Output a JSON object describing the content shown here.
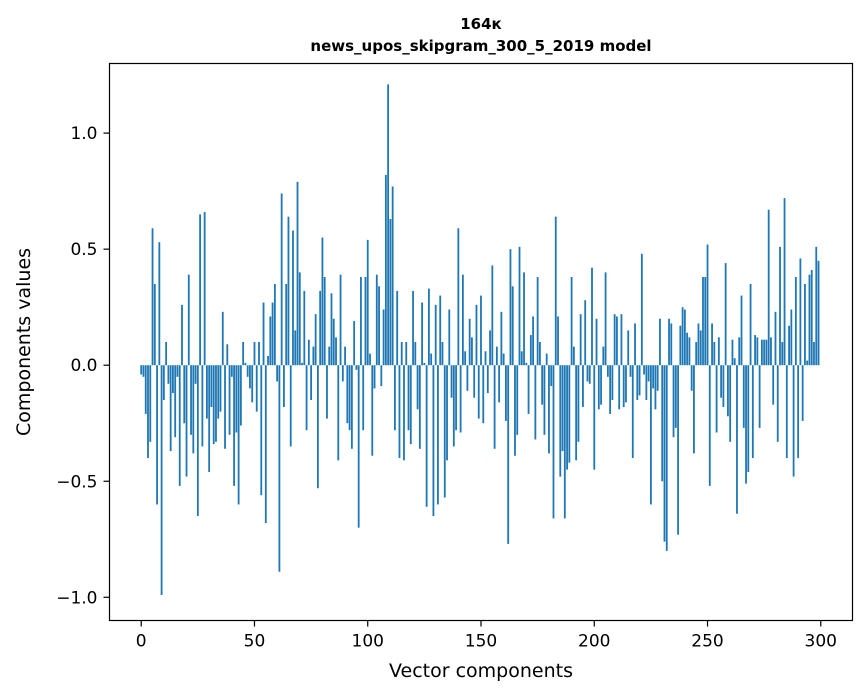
{
  "chart_data": {
    "type": "bar",
    "title": "164к",
    "subtitle": "news_upos_skipgram_300_5_2019 model",
    "xlabel": "Vector components",
    "ylabel": "Components values",
    "xlim": [
      -14,
      314
    ],
    "ylim": [
      -1.1,
      1.3
    ],
    "xticks": [
      0,
      50,
      100,
      150,
      200,
      250,
      300
    ],
    "yticks": [
      -1.0,
      -0.5,
      0.0,
      0.5,
      1.0
    ],
    "ytick_labels": [
      "−1.0",
      "−0.5",
      "0.0",
      "0.5",
      "1.0"
    ],
    "color": "#1f77b4",
    "values": [
      -0.04,
      -0.05,
      -0.21,
      -0.4,
      -0.33,
      0.59,
      0.35,
      -0.6,
      0.53,
      -0.99,
      -0.15,
      0.1,
      -0.08,
      -0.37,
      -0.12,
      -0.31,
      -0.05,
      -0.52,
      0.26,
      -0.25,
      -0.48,
      0.39,
      -0.3,
      -0.38,
      -0.08,
      -0.65,
      0.65,
      -0.35,
      0.66,
      -0.23,
      -0.46,
      -0.18,
      -0.34,
      -0.33,
      -0.23,
      -0.2,
      0.23,
      -0.36,
      0.09,
      -0.3,
      -0.05,
      -0.52,
      -0.29,
      -0.6,
      -0.26,
      0.1,
      0.01,
      -0.05,
      -0.1,
      -0.16,
      0.1,
      -0.2,
      0.1,
      -0.56,
      0.27,
      -0.68,
      0.04,
      0.21,
      0.27,
      0.35,
      -0.07,
      -0.89,
      0.74,
      -0.18,
      0.35,
      0.64,
      -0.35,
      0.58,
      0.15,
      0.79,
      0.4,
      0.01,
      0.32,
      -0.28,
      0.11,
      -0.15,
      0.08,
      0.22,
      -0.53,
      0.32,
      0.55,
      0.38,
      -0.23,
      0.08,
      0.31,
      0.2,
      0.12,
      -0.41,
      0.39,
      -0.07,
      0.08,
      -0.25,
      -0.28,
      -0.36,
      0.19,
      -0.02,
      -0.7,
      0.38,
      -0.28,
      0.38,
      0.54,
      0.05,
      -0.39,
      -0.1,
      0.39,
      0.34,
      -0.09,
      0.24,
      0.82,
      1.21,
      0.63,
      0.77,
      -0.28,
      0.32,
      -0.4,
      0.1,
      -0.41,
      0.1,
      -0.28,
      -0.34,
      0.32,
      0.1,
      -0.19,
      -0.36,
      0.27,
      0.01,
      -0.61,
      0.33,
      0.05,
      -0.65,
      0.26,
      -0.6,
      0.3,
      0.1,
      -0.57,
      -0.41,
      0.24,
      -0.14,
      -0.35,
      -0.28,
      0.59,
      -0.29,
      0.39,
      0.06,
      -0.11,
      0.2,
      0.12,
      -0.14,
      0.26,
      -0.23,
      0.3,
      -0.25,
      0.06,
      -0.12,
      0.15,
      0.43,
      -0.36,
      0.08,
      -0.16,
      0.23,
      0.05,
      -0.24,
      -0.77,
      0.5,
      0.34,
      -0.39,
      -0.3,
      0.51,
      0.06,
      0.4,
      0.01,
      -0.21,
      0.13,
      0.21,
      -0.32,
      0.38,
      0.1,
      -0.17,
      -0.3,
      0.05,
      -0.38,
      -0.09,
      -0.66,
      0.64,
      0.21,
      -0.48,
      -0.37,
      -0.66,
      -0.45,
      -0.42,
      0.38,
      0.08,
      -0.41,
      -0.33,
      0.22,
      -0.18,
      0.28,
      -0.07,
      -0.08,
      0.42,
      -0.45,
      0.2,
      -0.19,
      -0.17,
      0.08,
      0.4,
      -0.05,
      -0.21,
      -0.15,
      0.22,
      0.21,
      -0.19,
      0.22,
      -0.18,
      -0.16,
      0.15,
      -0.05,
      -0.4,
      0.18,
      -0.15,
      -0.13,
      0.48,
      -0.04,
      -0.15,
      -0.07,
      -0.6,
      -0.1,
      -0.19,
      -0.11,
      0.2,
      -0.5,
      -0.76,
      -0.8,
      0.2,
      0.18,
      -0.31,
      -0.27,
      -0.73,
      0.17,
      0.25,
      0.24,
      0.14,
      0.12,
      -0.11,
      -0.38,
      0.1,
      0.18,
      0.15,
      0.38,
      0.38,
      0.52,
      -0.52,
      0.18,
      0.1,
      -0.29,
      0.12,
      -0.14,
      -0.18,
      0.44,
      -0.22,
      -0.33,
      0.11,
      0.03,
      -0.64,
      0.12,
      0.3,
      -0.27,
      -0.51,
      -0.46,
      0.35,
      -0.4,
      0.13,
      0.12,
      -0.27,
      0.11,
      0.11,
      0.11,
      0.67,
      0.12,
      -0.17,
      0.23,
      -0.33,
      0.51,
      0.1,
      0.72,
      -0.4,
      0.17,
      0.24,
      -0.48,
      0.38,
      -0.4,
      0.46,
      -0.24,
      0.35,
      0.02,
      0.39,
      0.41,
      0.1,
      0.51,
      0.45
    ]
  }
}
